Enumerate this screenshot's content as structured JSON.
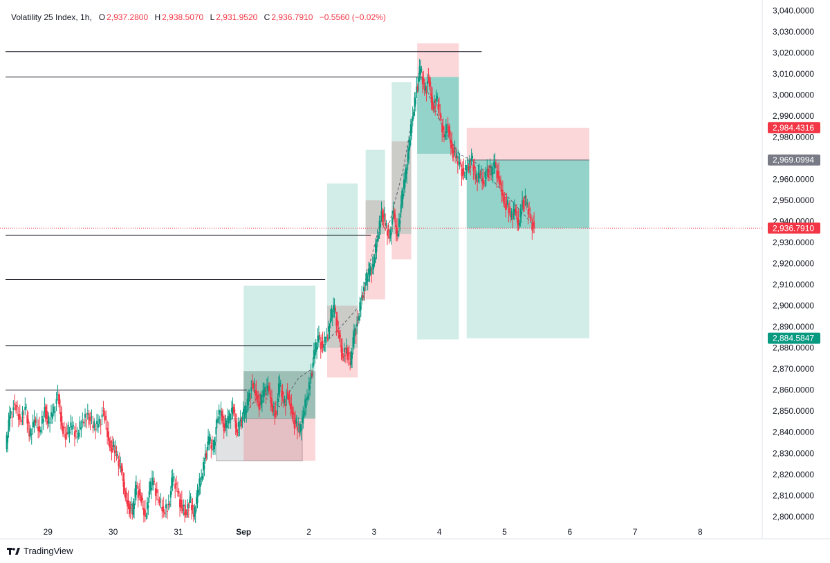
{
  "header": {
    "symbol": "Volatility 25 Index, 1h,",
    "o_label": "O",
    "o_value": "2,937.2800",
    "h_label": "H",
    "h_value": "2,938.5070",
    "l_label": "L",
    "l_value": "2,931.9520",
    "c_label": "C",
    "c_value": "2,936.7910",
    "change": "−0.5560 (−0.02%)"
  },
  "brand": {
    "name": "TradingView",
    "icon": "tradingview-logo-icon"
  },
  "colors": {
    "up": "#089981",
    "down": "#f23645",
    "grid": "#e0e3eb",
    "price_line": "#f23645",
    "neutral_tag": "#787b86"
  },
  "chart_data": {
    "type": "candlestick",
    "title": "Volatility 25 Index, 1h",
    "ylim": [
      2797,
      3045
    ],
    "y_ticks": [
      2800,
      2810,
      2820,
      2830,
      2840,
      2850,
      2860,
      2870,
      2880,
      2890,
      2900,
      2910,
      2920,
      2930,
      2940,
      2950,
      2960,
      2970,
      2980,
      2990,
      3000,
      3010,
      3020,
      3030,
      3040
    ],
    "y_tick_labels": [
      "2,800.0000",
      "2,810.0000",
      "2,820.0000",
      "2,830.0000",
      "2,840.0000",
      "2,850.0000",
      "2,860.0000",
      "2,870.0000",
      "2,880.0000",
      "2,890.0000",
      "2,900.0000",
      "2,910.0000",
      "2,920.0000",
      "2,930.0000",
      "2,940.0000",
      "2,950.0000",
      "2,960.0000",
      "2,970.0000",
      "2,980.0000",
      "2,990.0000",
      "3,000.0000",
      "3,010.0000",
      "3,020.0000",
      "3,030.0000",
      "3,040.0000"
    ],
    "x_ticks": [
      {
        "day": 29,
        "label": "29"
      },
      {
        "day": 30,
        "label": "30"
      },
      {
        "day": 31,
        "label": "31"
      },
      {
        "day": 32,
        "label": "Sep"
      },
      {
        "day": 33,
        "label": "2"
      },
      {
        "day": 34,
        "label": "3"
      },
      {
        "day": 35,
        "label": "4"
      },
      {
        "day": 36,
        "label": "5"
      },
      {
        "day": 37,
        "label": "6"
      },
      {
        "day": 38,
        "label": "7"
      },
      {
        "day": 39,
        "label": "8"
      }
    ],
    "x_domain_days": [
      28.35,
      39.95
    ],
    "price_tags": [
      {
        "value": 2984.4316,
        "label": "2,984.4316",
        "color": "#f23645"
      },
      {
        "value": 2969.0994,
        "label": "2,969.0994",
        "color": "#787b86"
      },
      {
        "value": 2936.791,
        "label": "2,936.7910",
        "color": "#f23645"
      },
      {
        "value": 2884.5847,
        "label": "2,884.5847",
        "color": "#089981"
      }
    ],
    "last_price": 2936.791,
    "horizontal_lines": [
      {
        "value": 3020.5,
        "x_start_day": 28.35,
        "x_end_day": 35.65
      },
      {
        "value": 3008.5,
        "x_start_day": 28.35,
        "x_end_day": 34.75
      },
      {
        "value": 2933.5,
        "x_start_day": 28.35,
        "x_end_day": 33.95
      },
      {
        "value": 2912.5,
        "x_start_day": 28.35,
        "x_end_day": 33.25
      },
      {
        "value": 2881.0,
        "x_start_day": 28.35,
        "x_end_day": 33.05
      },
      {
        "value": 2860.0,
        "x_start_day": 28.35,
        "x_end_day": 32.05
      }
    ],
    "position_boxes": [
      {
        "x0": 31.58,
        "x1": 32.9,
        "target": 2869.0,
        "entry": 2846.5,
        "stop": 2826.5,
        "kind": "long-closed-stop"
      },
      {
        "x0": 32.0,
        "x1": 33.1,
        "target": 2909.5,
        "entry": 2869.0,
        "stop": 2846.5,
        "kind": "long-stop"
      },
      {
        "x0": 32.0,
        "x1": 33.1,
        "target": 2869.0,
        "entry": 2846.5,
        "stop": 2826.5,
        "kind": "long-stop-inner"
      },
      {
        "x0": 33.28,
        "x1": 33.75,
        "target": 2958.0,
        "entry": 2900.0,
        "stop": 2866.0,
        "kind": "long"
      },
      {
        "x0": 33.87,
        "x1": 34.17,
        "target": 2974.0,
        "entry": 2950.0,
        "stop": 2903.0,
        "kind": "long"
      },
      {
        "x0": 34.27,
        "x1": 34.57,
        "target": 3006.0,
        "entry": 2978.0,
        "stop": 2922.0,
        "kind": "long"
      },
      {
        "x0": 34.66,
        "x1": 35.3,
        "target": 2884.0,
        "entry": 3008.5,
        "stop": 3024.5,
        "kind": "short-filled",
        "filled_to": 2972.0
      },
      {
        "x0": 35.42,
        "x1": 37.3,
        "target": 2884.5847,
        "entry": 2969.0994,
        "stop": 2984.4316,
        "kind": "short-open",
        "filled_to": 2936.791
      }
    ],
    "trend_paths": [
      [
        [
          31.95,
          2846
        ],
        [
          32.25,
          2858
        ],
        [
          32.55,
          2852
        ],
        [
          32.85,
          2866
        ],
        [
          33.05,
          2870
        ]
      ],
      [
        [
          33.3,
          2884
        ],
        [
          33.55,
          2892
        ],
        [
          33.75,
          2899
        ]
      ],
      [
        [
          33.85,
          2910
        ],
        [
          34.1,
          2940
        ],
        [
          34.2,
          2935
        ],
        [
          34.45,
          2965
        ],
        [
          34.6,
          2992
        ]
      ],
      [
        [
          34.7,
          3010
        ],
        [
          35.05,
          2985
        ],
        [
          35.3,
          2972
        ],
        [
          35.55,
          2968
        ],
        [
          35.8,
          2960
        ],
        [
          36.1,
          2950
        ],
        [
          36.45,
          2938
        ]
      ]
    ],
    "candles_1h_close_path": [
      [
        28.36,
        2832
      ],
      [
        28.42,
        2848
      ],
      [
        28.5,
        2853
      ],
      [
        28.58,
        2846
      ],
      [
        28.66,
        2852
      ],
      [
        28.72,
        2838
      ],
      [
        28.8,
        2846
      ],
      [
        28.88,
        2840
      ],
      [
        28.96,
        2852
      ],
      [
        29.0,
        2844
      ],
      [
        29.08,
        2849
      ],
      [
        29.16,
        2858
      ],
      [
        29.22,
        2843
      ],
      [
        29.3,
        2839
      ],
      [
        29.38,
        2843
      ],
      [
        29.46,
        2838
      ],
      [
        29.54,
        2845
      ],
      [
        29.62,
        2849
      ],
      [
        29.7,
        2842
      ],
      [
        29.78,
        2844
      ],
      [
        29.86,
        2850
      ],
      [
        29.94,
        2836
      ],
      [
        30.0,
        2833
      ],
      [
        30.06,
        2829
      ],
      [
        30.12,
        2824
      ],
      [
        30.18,
        2812
      ],
      [
        30.24,
        2806
      ],
      [
        30.3,
        2801
      ],
      [
        30.36,
        2815
      ],
      [
        30.42,
        2810
      ],
      [
        30.5,
        2800
      ],
      [
        30.56,
        2812
      ],
      [
        30.62,
        2817
      ],
      [
        30.7,
        2808
      ],
      [
        30.78,
        2802
      ],
      [
        30.86,
        2806
      ],
      [
        30.92,
        2818
      ],
      [
        31.0,
        2812
      ],
      [
        31.06,
        2804
      ],
      [
        31.12,
        2802
      ],
      [
        31.18,
        2808
      ],
      [
        31.24,
        2800
      ],
      [
        31.3,
        2811
      ],
      [
        31.36,
        2818
      ],
      [
        31.42,
        2830
      ],
      [
        31.48,
        2836
      ],
      [
        31.54,
        2832
      ],
      [
        31.6,
        2846
      ],
      [
        31.66,
        2850
      ],
      [
        31.72,
        2842
      ],
      [
        31.78,
        2846
      ],
      [
        31.84,
        2852
      ],
      [
        31.9,
        2840
      ],
      [
        31.96,
        2846
      ],
      [
        32.02,
        2848
      ],
      [
        32.08,
        2856
      ],
      [
        32.14,
        2863
      ],
      [
        32.2,
        2858
      ],
      [
        32.26,
        2853
      ],
      [
        32.32,
        2859
      ],
      [
        32.38,
        2862
      ],
      [
        32.44,
        2852
      ],
      [
        32.5,
        2849
      ],
      [
        32.56,
        2863
      ],
      [
        32.62,
        2854
      ],
      [
        32.68,
        2858
      ],
      [
        32.74,
        2851
      ],
      [
        32.8,
        2844
      ],
      [
        32.86,
        2840
      ],
      [
        32.92,
        2848
      ],
      [
        32.98,
        2856
      ],
      [
        33.04,
        2868
      ],
      [
        33.1,
        2878
      ],
      [
        33.16,
        2886
      ],
      [
        33.22,
        2880
      ],
      [
        33.28,
        2885
      ],
      [
        33.34,
        2894
      ],
      [
        33.4,
        2899
      ],
      [
        33.46,
        2887
      ],
      [
        33.52,
        2876
      ],
      [
        33.58,
        2880
      ],
      [
        33.64,
        2872
      ],
      [
        33.7,
        2887
      ],
      [
        33.76,
        2893
      ],
      [
        33.82,
        2905
      ],
      [
        33.88,
        2911
      ],
      [
        33.94,
        2916
      ],
      [
        34.0,
        2920
      ],
      [
        34.06,
        2932
      ],
      [
        34.12,
        2945
      ],
      [
        34.18,
        2938
      ],
      [
        34.24,
        2932
      ],
      [
        34.3,
        2945
      ],
      [
        34.36,
        2933
      ],
      [
        34.42,
        2948
      ],
      [
        34.48,
        2960
      ],
      [
        34.54,
        2975
      ],
      [
        34.6,
        2990
      ],
      [
        34.66,
        3004
      ],
      [
        34.72,
        3012
      ],
      [
        34.78,
        3002
      ],
      [
        34.84,
        3008
      ],
      [
        34.9,
        2995
      ],
      [
        34.96,
        2998
      ],
      [
        35.02,
        2990
      ],
      [
        35.08,
        2980
      ],
      [
        35.14,
        2985
      ],
      [
        35.2,
        2975
      ],
      [
        35.26,
        2970
      ],
      [
        35.32,
        2968
      ],
      [
        35.38,
        2962
      ],
      [
        35.44,
        2966
      ],
      [
        35.5,
        2970
      ],
      [
        35.56,
        2960
      ],
      [
        35.62,
        2963
      ],
      [
        35.68,
        2958
      ],
      [
        35.74,
        2965
      ],
      [
        35.8,
        2962
      ],
      [
        35.86,
        2968
      ],
      [
        35.92,
        2960
      ],
      [
        35.98,
        2952
      ],
      [
        36.04,
        2948
      ],
      [
        36.1,
        2942
      ],
      [
        36.16,
        2946
      ],
      [
        36.22,
        2938
      ],
      [
        36.28,
        2950
      ],
      [
        36.34,
        2948
      ],
      [
        36.4,
        2942
      ],
      [
        36.46,
        2936.791
      ]
    ]
  }
}
